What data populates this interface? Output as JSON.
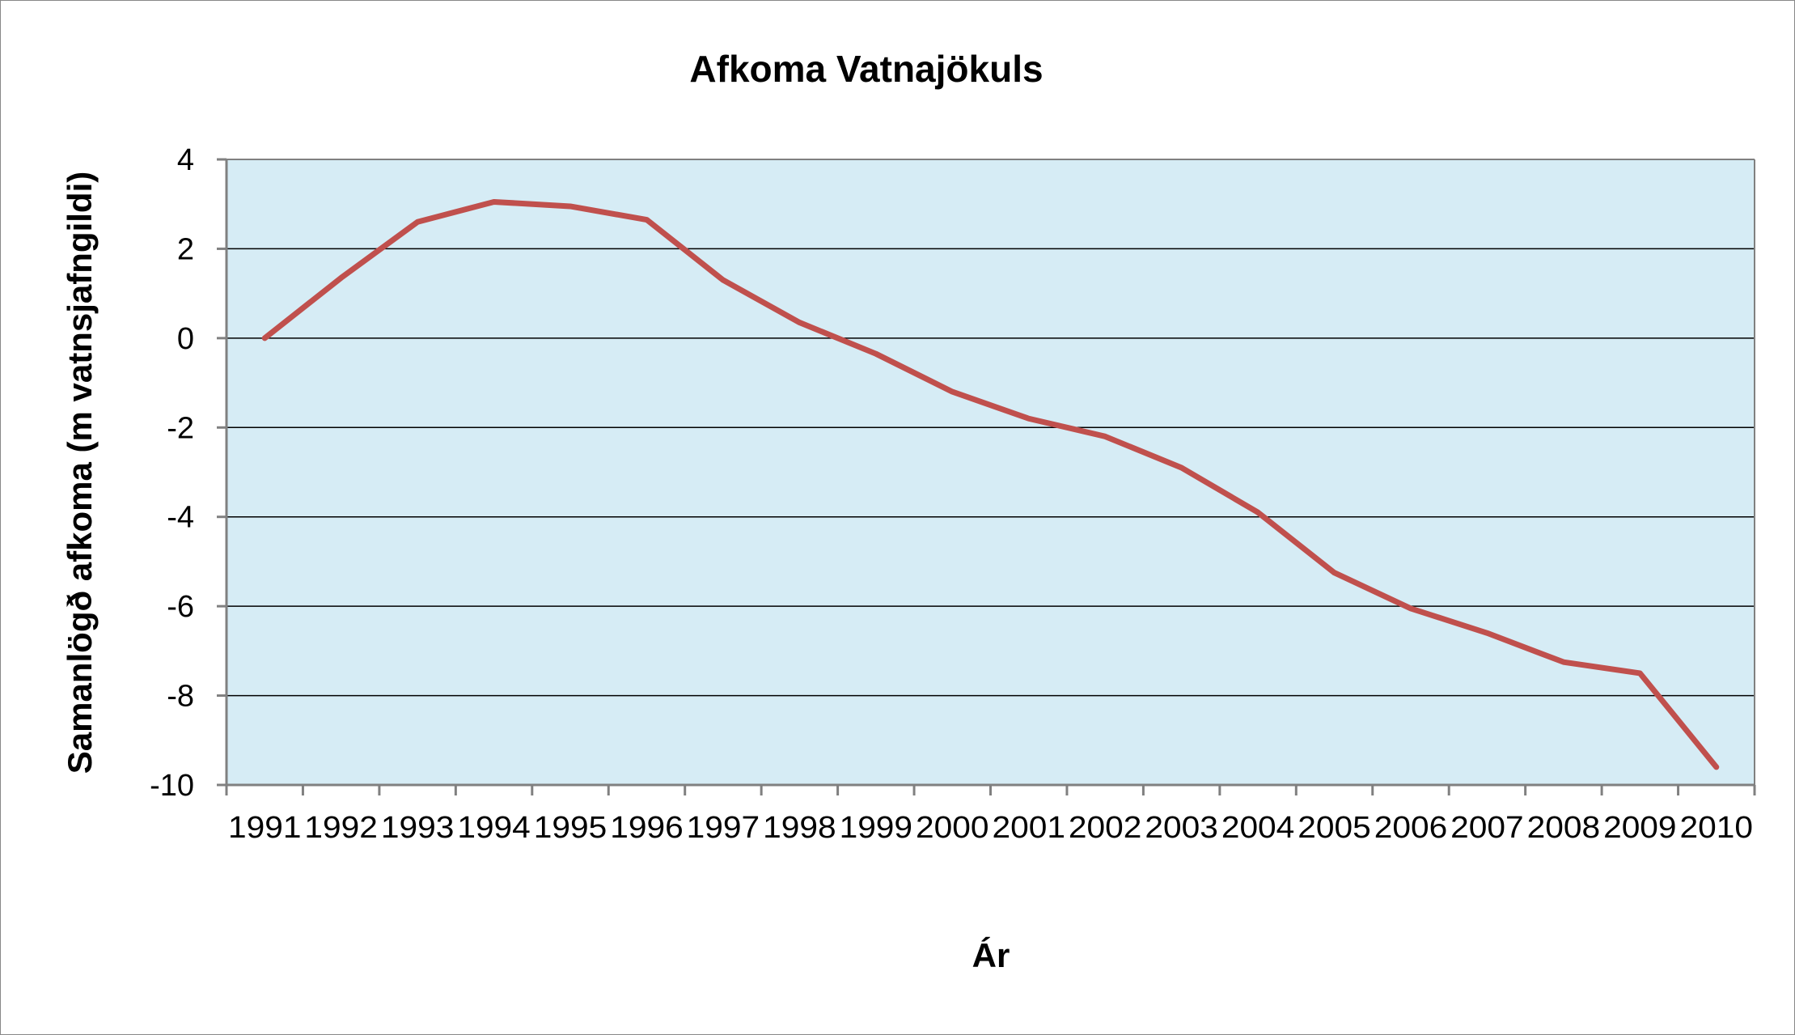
{
  "colors": {
    "plot_background": "#d6ecf5",
    "gridline": "#000000",
    "axis": "#808080",
    "series_line": "#c0504d"
  },
  "chart_data": {
    "type": "line",
    "title": "Afkoma Vatnajökuls",
    "xlabel": "Ár",
    "ylabel": "Samanlögð afkoma (m vatnsjafngildi)",
    "categories": [
      "1991",
      "1992",
      "1993",
      "1994",
      "1995",
      "1996",
      "1997",
      "1998",
      "1999",
      "2000",
      "2001",
      "2002",
      "2003",
      "2004",
      "2005",
      "2006",
      "2007",
      "2008",
      "2009",
      "2010"
    ],
    "ylim": [
      -10,
      4
    ],
    "yticks": [
      "4",
      "2",
      "0",
      "-2",
      "-4",
      "-6",
      "-8",
      "-10"
    ],
    "ytick_values": [
      4,
      2,
      0,
      -2,
      -4,
      -6,
      -8,
      -10
    ],
    "grid": true,
    "legend": "none",
    "series": [
      {
        "values": [
          0.0,
          1.35,
          2.6,
          3.05,
          2.95,
          2.65,
          1.3,
          0.35,
          -0.35,
          -1.2,
          -1.8,
          -2.2,
          -2.9,
          -3.9,
          -5.25,
          -6.05,
          -6.6,
          -7.25,
          -7.5,
          -9.6
        ]
      }
    ]
  }
}
